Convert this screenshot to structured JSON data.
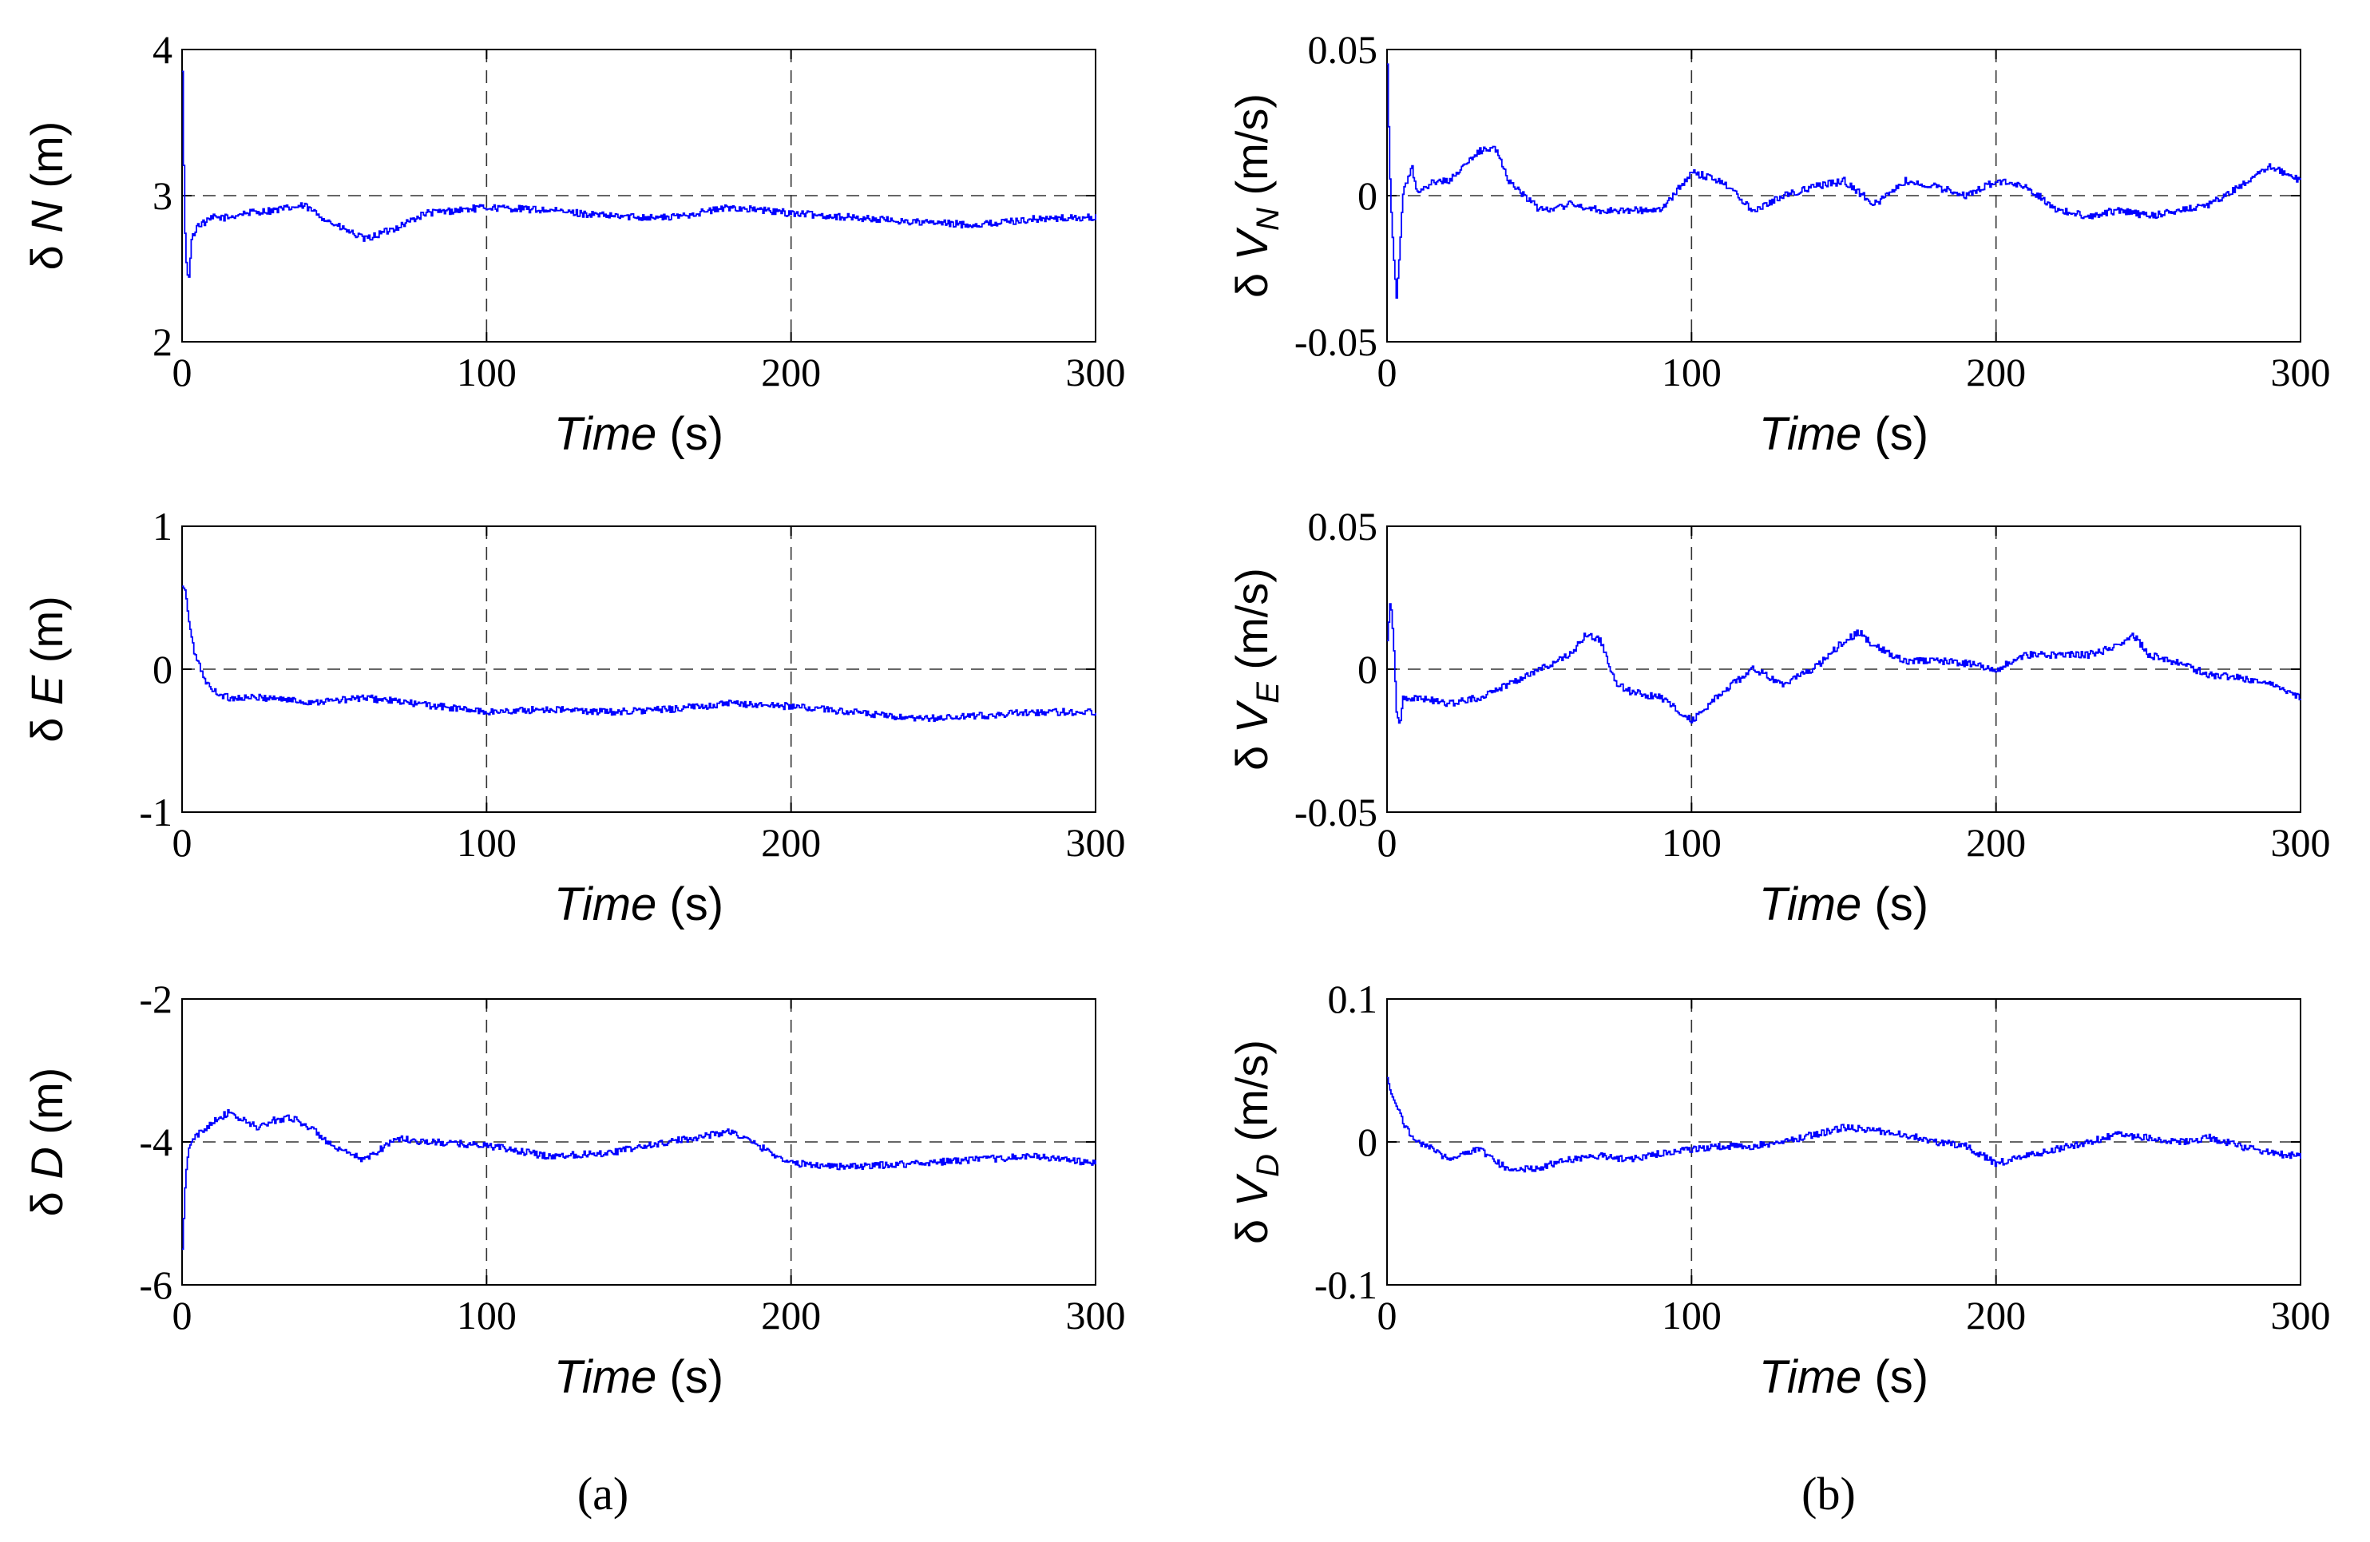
{
  "chart_data": [
    {
      "type": "line",
      "panel": "a",
      "position": "left column, row 1",
      "ylabel": {
        "prefix": "δ ",
        "symbol": "N",
        "sub": "",
        "unit": " (m)"
      },
      "xlabel": {
        "italic": "Time",
        "unit": " (s)"
      },
      "xlim": [
        0,
        300
      ],
      "ylim": [
        2,
        4
      ],
      "xticks": [
        "0",
        "100",
        "200",
        "300"
      ],
      "yticks": [
        "2",
        "3",
        "4"
      ],
      "ref_line": 3.0,
      "color": "#0000ff",
      "series": [
        {
          "name": "δN",
          "x": [
            0,
            0.5,
            1,
            2,
            3,
            5,
            8,
            10,
            15,
            20,
            30,
            40,
            50,
            60,
            70,
            80,
            100,
            120,
            140,
            160,
            180,
            200,
            220,
            240,
            260,
            280,
            300
          ],
          "values": [
            3.85,
            3.1,
            2.6,
            2.4,
            2.7,
            2.8,
            2.82,
            2.85,
            2.85,
            2.88,
            2.9,
            2.93,
            2.8,
            2.7,
            2.78,
            2.88,
            2.92,
            2.9,
            2.86,
            2.85,
            2.92,
            2.88,
            2.85,
            2.82,
            2.8,
            2.84,
            2.85
          ]
        }
      ]
    },
    {
      "type": "line",
      "panel": "a",
      "position": "left column, row 2",
      "ylabel": {
        "prefix": "δ ",
        "symbol": "E",
        "sub": "",
        "unit": " (m)"
      },
      "xlabel": {
        "italic": "Time",
        "unit": " (s)"
      },
      "xlim": [
        0,
        300
      ],
      "ylim": [
        -1,
        1
      ],
      "xticks": [
        "0",
        "100",
        "200",
        "300"
      ],
      "yticks": [
        "-1",
        "0",
        "1"
      ],
      "ref_line": 0,
      "color": "#0000ff",
      "series": [
        {
          "name": "δE",
          "x": [
            0,
            1,
            2,
            4,
            6,
            8,
            10,
            15,
            20,
            30,
            40,
            50,
            60,
            80,
            100,
            120,
            140,
            160,
            180,
            200,
            220,
            240,
            260,
            280,
            300
          ],
          "values": [
            0.58,
            0.55,
            0.35,
            0.1,
            0.0,
            -0.1,
            -0.15,
            -0.2,
            -0.2,
            -0.2,
            -0.23,
            -0.22,
            -0.2,
            -0.25,
            -0.3,
            -0.28,
            -0.3,
            -0.28,
            -0.24,
            -0.26,
            -0.3,
            -0.35,
            -0.33,
            -0.3,
            -0.3
          ]
        }
      ]
    },
    {
      "type": "line",
      "panel": "a",
      "position": "left column, row 3",
      "ylabel": {
        "prefix": "δ ",
        "symbol": "D",
        "sub": "",
        "unit": " (m)"
      },
      "xlabel": {
        "italic": "Time",
        "unit": " (s)"
      },
      "xlim": [
        0,
        300
      ],
      "ylim": [
        -6,
        -2
      ],
      "xticks": [
        "0",
        "100",
        "200",
        "300"
      ],
      "yticks": [
        "-6",
        "-4",
        "-2"
      ],
      "ref_line": -4,
      "color": "#0000ff",
      "series": [
        {
          "name": "δD",
          "x": [
            0,
            0.5,
            1,
            2,
            3,
            5,
            8,
            10,
            15,
            20,
            25,
            30,
            35,
            40,
            45,
            50,
            60,
            70,
            80,
            100,
            120,
            140,
            160,
            180,
            200,
            220,
            240,
            260,
            280,
            300
          ],
          "values": [
            -5.5,
            -5.0,
            -4.5,
            -4.1,
            -4.0,
            -3.9,
            -3.8,
            -3.7,
            -3.6,
            -3.7,
            -3.8,
            -3.7,
            -3.65,
            -3.75,
            -3.9,
            -4.1,
            -4.25,
            -3.95,
            -4.0,
            -4.05,
            -4.2,
            -4.15,
            -4.0,
            -3.85,
            -4.3,
            -4.35,
            -4.3,
            -4.25,
            -4.2,
            -4.3
          ]
        }
      ]
    },
    {
      "type": "line",
      "panel": "b",
      "position": "right column, row 1",
      "ylabel": {
        "prefix": "δ ",
        "symbol": "V",
        "sub": "N",
        "unit": " (m/s)"
      },
      "xlabel": {
        "italic": "Time",
        "unit": " (s)"
      },
      "xlim": [
        0,
        300
      ],
      "ylim": [
        -0.05,
        0.05
      ],
      "xticks": [
        "0",
        "100",
        "200",
        "300"
      ],
      "yticks": [
        "-0.05",
        "0",
        "0.05"
      ],
      "ref_line": 0,
      "color": "#0000ff",
      "series": [
        {
          "name": "δV_N",
          "x": [
            0,
            0.5,
            1,
            2,
            3,
            4,
            5,
            8,
            10,
            15,
            20,
            25,
            30,
            35,
            40,
            50,
            60,
            70,
            80,
            90,
            100,
            110,
            120,
            130,
            140,
            150,
            160,
            170,
            180,
            190,
            200,
            210,
            220,
            230,
            240,
            250,
            260,
            270,
            280,
            290,
            300
          ],
          "values": [
            0.045,
            0.02,
            0.0,
            -0.02,
            -0.035,
            -0.02,
            0.0,
            0.01,
            0.0,
            0.005,
            0.005,
            0.01,
            0.015,
            0.017,
            0.005,
            -0.005,
            -0.003,
            -0.005,
            -0.005,
            -0.005,
            0.008,
            0.005,
            -0.005,
            0.0,
            0.003,
            0.005,
            -0.003,
            0.005,
            0.003,
            0.0,
            0.005,
            0.003,
            -0.005,
            -0.007,
            -0.005,
            -0.007,
            -0.005,
            -0.003,
            0.003,
            0.01,
            0.005
          ]
        }
      ]
    },
    {
      "type": "line",
      "panel": "b",
      "position": "right column, row 2",
      "ylabel": {
        "prefix": "δ ",
        "symbol": "V",
        "sub": "E",
        "unit": " (m/s)"
      },
      "xlabel": {
        "italic": "Time",
        "unit": " (s)"
      },
      "xlim": [
        0,
        300
      ],
      "ylim": [
        -0.05,
        0.05
      ],
      "xticks": [
        "0",
        "100",
        "200",
        "300"
      ],
      "yticks": [
        "-0.05",
        "0",
        "0.05"
      ],
      "ref_line": 0,
      "color": "#0000ff",
      "series": [
        {
          "name": "δV_E",
          "x": [
            0,
            1,
            2,
            3,
            4,
            5,
            10,
            20,
            30,
            40,
            50,
            60,
            65,
            70,
            75,
            80,
            90,
            100,
            110,
            120,
            130,
            140,
            150,
            155,
            160,
            170,
            180,
            190,
            200,
            210,
            220,
            230,
            240,
            245,
            250,
            260,
            270,
            280,
            290,
            300
          ],
          "values": [
            0.01,
            0.025,
            0.01,
            -0.015,
            -0.02,
            -0.01,
            -0.01,
            -0.012,
            -0.01,
            -0.005,
            0.0,
            0.005,
            0.012,
            0.01,
            -0.005,
            -0.008,
            -0.01,
            -0.018,
            -0.008,
            0.0,
            -0.005,
            0.0,
            0.01,
            0.013,
            0.008,
            0.003,
            0.003,
            0.002,
            0.0,
            0.005,
            0.005,
            0.005,
            0.008,
            0.012,
            0.005,
            0.002,
            -0.002,
            -0.003,
            -0.005,
            -0.01
          ]
        }
      ]
    },
    {
      "type": "line",
      "panel": "b",
      "position": "right column, row 3",
      "ylabel": {
        "prefix": "δ ",
        "symbol": "V",
        "sub": "D",
        "unit": " (m/s)"
      },
      "xlabel": {
        "italic": "Time",
        "unit": " (s)"
      },
      "xlim": [
        0,
        300
      ],
      "ylim": [
        -0.1,
        0.1
      ],
      "xticks": [
        "0",
        "100",
        "200",
        "300"
      ],
      "yticks": [
        "-0.1",
        "0",
        "0.1"
      ],
      "ref_line": 0,
      "color": "#0000ff",
      "series": [
        {
          "name": "δV_D",
          "x": [
            0,
            1,
            2,
            4,
            6,
            8,
            10,
            15,
            20,
            25,
            30,
            40,
            50,
            60,
            70,
            80,
            90,
            100,
            110,
            120,
            130,
            140,
            150,
            160,
            170,
            180,
            190,
            200,
            210,
            220,
            230,
            240,
            250,
            260,
            270,
            280,
            290,
            300
          ],
          "values": [
            0.045,
            0.035,
            0.03,
            0.02,
            0.01,
            0.005,
            0.0,
            -0.005,
            -0.012,
            -0.008,
            -0.005,
            -0.02,
            -0.018,
            -0.012,
            -0.01,
            -0.012,
            -0.008,
            -0.005,
            -0.003,
            -0.003,
            0.0,
            0.005,
            0.01,
            0.008,
            0.005,
            0.0,
            -0.003,
            -0.015,
            -0.01,
            -0.005,
            0.0,
            0.005,
            0.003,
            0.0,
            0.003,
            -0.003,
            -0.008,
            -0.01
          ]
        }
      ]
    }
  ],
  "captions": {
    "left": "(a)",
    "right": "(b)"
  }
}
